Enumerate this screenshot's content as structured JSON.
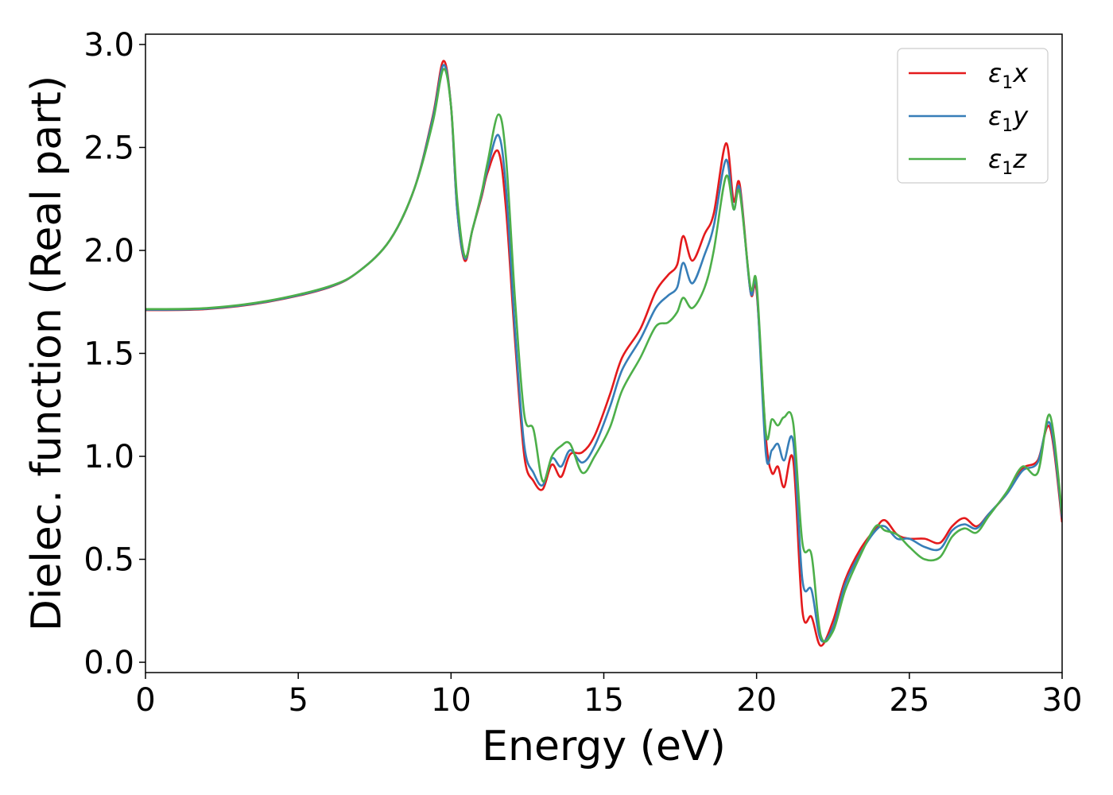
{
  "chart_data": {
    "type": "line",
    "title": "",
    "xlabel": "Energy (eV)",
    "ylabel": "Dielec. function (Real part)",
    "xlim": [
      0,
      30
    ],
    "ylim": [
      -0.05,
      3.05
    ],
    "xticks": [
      0,
      5,
      10,
      15,
      20,
      25,
      30
    ],
    "yticks": [
      0.0,
      0.5,
      1.0,
      1.5,
      2.0,
      2.5,
      3.0
    ],
    "xtick_labels": [
      "0",
      "5",
      "10",
      "15",
      "20",
      "25",
      "30"
    ],
    "ytick_labels": [
      "0.0",
      "0.5",
      "1.0",
      "1.5",
      "2.0",
      "2.5",
      "3.0"
    ],
    "grid": false,
    "legend_position": "top-right",
    "series": [
      {
        "name": "ε1x",
        "legend": {
          "base": "ε",
          "sub": "1",
          "var": "x"
        },
        "color": "#e41a1c",
        "points": [
          [
            0,
            1.71
          ],
          [
            2,
            1.715
          ],
          [
            4,
            1.75
          ],
          [
            6,
            1.82
          ],
          [
            7,
            1.9
          ],
          [
            8,
            2.05
          ],
          [
            8.8,
            2.3
          ],
          [
            9.4,
            2.65
          ],
          [
            9.75,
            2.92
          ],
          [
            10.0,
            2.7
          ],
          [
            10.2,
            2.2
          ],
          [
            10.45,
            1.95
          ],
          [
            10.7,
            2.1
          ],
          [
            11.0,
            2.26
          ],
          [
            11.2,
            2.38
          ],
          [
            11.55,
            2.48
          ],
          [
            11.8,
            2.2
          ],
          [
            12.1,
            1.55
          ],
          [
            12.4,
            1.0
          ],
          [
            12.7,
            0.88
          ],
          [
            13.0,
            0.84
          ],
          [
            13.3,
            0.96
          ],
          [
            13.6,
            0.9
          ],
          [
            13.9,
            1.01
          ],
          [
            14.3,
            1.02
          ],
          [
            14.7,
            1.1
          ],
          [
            15.2,
            1.3
          ],
          [
            15.6,
            1.48
          ],
          [
            16.2,
            1.62
          ],
          [
            16.7,
            1.8
          ],
          [
            17.1,
            1.88
          ],
          [
            17.4,
            1.93
          ],
          [
            17.6,
            2.07
          ],
          [
            17.9,
            1.95
          ],
          [
            18.3,
            2.08
          ],
          [
            18.6,
            2.18
          ],
          [
            19.0,
            2.52
          ],
          [
            19.25,
            2.24
          ],
          [
            19.45,
            2.32
          ],
          [
            19.8,
            1.8
          ],
          [
            20.0,
            1.8
          ],
          [
            20.3,
            1.1
          ],
          [
            20.5,
            0.92
          ],
          [
            20.7,
            0.95
          ],
          [
            20.9,
            0.85
          ],
          [
            21.2,
            0.98
          ],
          [
            21.5,
            0.25
          ],
          [
            21.8,
            0.22
          ],
          [
            22.1,
            0.08
          ],
          [
            22.5,
            0.2
          ],
          [
            22.9,
            0.4
          ],
          [
            23.4,
            0.55
          ],
          [
            23.9,
            0.65
          ],
          [
            24.2,
            0.69
          ],
          [
            24.6,
            0.62
          ],
          [
            25.0,
            0.6
          ],
          [
            25.5,
            0.6
          ],
          [
            26.0,
            0.58
          ],
          [
            26.4,
            0.66
          ],
          [
            26.8,
            0.7
          ],
          [
            27.2,
            0.66
          ],
          [
            27.6,
            0.72
          ],
          [
            28.2,
            0.82
          ],
          [
            28.7,
            0.94
          ],
          [
            29.2,
            0.98
          ],
          [
            29.6,
            1.14
          ],
          [
            30,
            0.68
          ]
        ]
      },
      {
        "name": "ε1y",
        "legend": {
          "base": "ε",
          "sub": "1",
          "var": "y"
        },
        "color": "#377eb8",
        "points": [
          [
            0,
            1.712
          ],
          [
            2,
            1.717
          ],
          [
            4,
            1.752
          ],
          [
            6,
            1.822
          ],
          [
            7,
            1.9
          ],
          [
            8,
            2.05
          ],
          [
            8.8,
            2.3
          ],
          [
            9.4,
            2.64
          ],
          [
            9.75,
            2.9
          ],
          [
            10.0,
            2.7
          ],
          [
            10.2,
            2.2
          ],
          [
            10.45,
            1.96
          ],
          [
            10.7,
            2.1
          ],
          [
            11.0,
            2.27
          ],
          [
            11.2,
            2.4
          ],
          [
            11.55,
            2.56
          ],
          [
            11.8,
            2.3
          ],
          [
            12.1,
            1.6
          ],
          [
            12.4,
            1.05
          ],
          [
            12.7,
            0.92
          ],
          [
            13.0,
            0.86
          ],
          [
            13.3,
            0.99
          ],
          [
            13.6,
            0.95
          ],
          [
            13.9,
            1.03
          ],
          [
            14.3,
            0.97
          ],
          [
            14.7,
            1.05
          ],
          [
            15.2,
            1.24
          ],
          [
            15.6,
            1.42
          ],
          [
            16.2,
            1.57
          ],
          [
            16.7,
            1.72
          ],
          [
            17.1,
            1.78
          ],
          [
            17.4,
            1.82
          ],
          [
            17.6,
            1.94
          ],
          [
            17.9,
            1.84
          ],
          [
            18.3,
            1.98
          ],
          [
            18.6,
            2.12
          ],
          [
            19.0,
            2.44
          ],
          [
            19.25,
            2.2
          ],
          [
            19.45,
            2.3
          ],
          [
            19.8,
            1.8
          ],
          [
            20.0,
            1.82
          ],
          [
            20.3,
            1.02
          ],
          [
            20.5,
            1.03
          ],
          [
            20.7,
            1.06
          ],
          [
            20.9,
            0.98
          ],
          [
            21.2,
            1.07
          ],
          [
            21.5,
            0.4
          ],
          [
            21.8,
            0.35
          ],
          [
            22.1,
            0.11
          ],
          [
            22.5,
            0.17
          ],
          [
            22.9,
            0.38
          ],
          [
            23.4,
            0.53
          ],
          [
            23.9,
            0.64
          ],
          [
            24.2,
            0.66
          ],
          [
            24.6,
            0.6
          ],
          [
            25.0,
            0.6
          ],
          [
            25.5,
            0.56
          ],
          [
            26.0,
            0.55
          ],
          [
            26.4,
            0.64
          ],
          [
            26.8,
            0.67
          ],
          [
            27.2,
            0.65
          ],
          [
            27.6,
            0.72
          ],
          [
            28.2,
            0.82
          ],
          [
            28.7,
            0.93
          ],
          [
            29.2,
            0.97
          ],
          [
            29.6,
            1.16
          ],
          [
            30,
            0.7
          ]
        ]
      },
      {
        "name": "ε1z",
        "legend": {
          "base": "ε",
          "sub": "1",
          "var": "z"
        },
        "color": "#4daf4a",
        "points": [
          [
            0,
            1.715
          ],
          [
            2,
            1.72
          ],
          [
            4,
            1.755
          ],
          [
            6,
            1.825
          ],
          [
            7,
            1.9
          ],
          [
            8,
            2.05
          ],
          [
            8.8,
            2.3
          ],
          [
            9.4,
            2.62
          ],
          [
            9.75,
            2.88
          ],
          [
            10.0,
            2.7
          ],
          [
            10.2,
            2.25
          ],
          [
            10.45,
            1.97
          ],
          [
            10.7,
            2.1
          ],
          [
            11.0,
            2.28
          ],
          [
            11.2,
            2.43
          ],
          [
            11.55,
            2.66
          ],
          [
            11.8,
            2.45
          ],
          [
            12.1,
            1.75
          ],
          [
            12.4,
            1.2
          ],
          [
            12.7,
            1.13
          ],
          [
            13.0,
            0.88
          ],
          [
            13.3,
            1.0
          ],
          [
            13.6,
            1.05
          ],
          [
            13.9,
            1.06
          ],
          [
            14.3,
            0.92
          ],
          [
            14.7,
            1.0
          ],
          [
            15.2,
            1.14
          ],
          [
            15.6,
            1.32
          ],
          [
            16.2,
            1.48
          ],
          [
            16.7,
            1.63
          ],
          [
            17.1,
            1.65
          ],
          [
            17.4,
            1.7
          ],
          [
            17.6,
            1.77
          ],
          [
            17.9,
            1.72
          ],
          [
            18.3,
            1.82
          ],
          [
            18.6,
            2.0
          ],
          [
            19.0,
            2.36
          ],
          [
            19.25,
            2.2
          ],
          [
            19.45,
            2.28
          ],
          [
            19.8,
            1.82
          ],
          [
            20.0,
            1.84
          ],
          [
            20.3,
            1.12
          ],
          [
            20.5,
            1.18
          ],
          [
            20.7,
            1.15
          ],
          [
            20.9,
            1.19
          ],
          [
            21.2,
            1.16
          ],
          [
            21.5,
            0.58
          ],
          [
            21.8,
            0.52
          ],
          [
            22.1,
            0.13
          ],
          [
            22.5,
            0.15
          ],
          [
            22.9,
            0.35
          ],
          [
            23.4,
            0.52
          ],
          [
            23.9,
            0.66
          ],
          [
            24.2,
            0.64
          ],
          [
            24.6,
            0.62
          ],
          [
            25.0,
            0.56
          ],
          [
            25.5,
            0.5
          ],
          [
            26.0,
            0.51
          ],
          [
            26.4,
            0.61
          ],
          [
            26.8,
            0.65
          ],
          [
            27.2,
            0.63
          ],
          [
            27.6,
            0.71
          ],
          [
            28.2,
            0.83
          ],
          [
            28.7,
            0.95
          ],
          [
            29.2,
            0.92
          ],
          [
            29.6,
            1.2
          ],
          [
            30,
            0.72
          ]
        ]
      }
    ]
  }
}
